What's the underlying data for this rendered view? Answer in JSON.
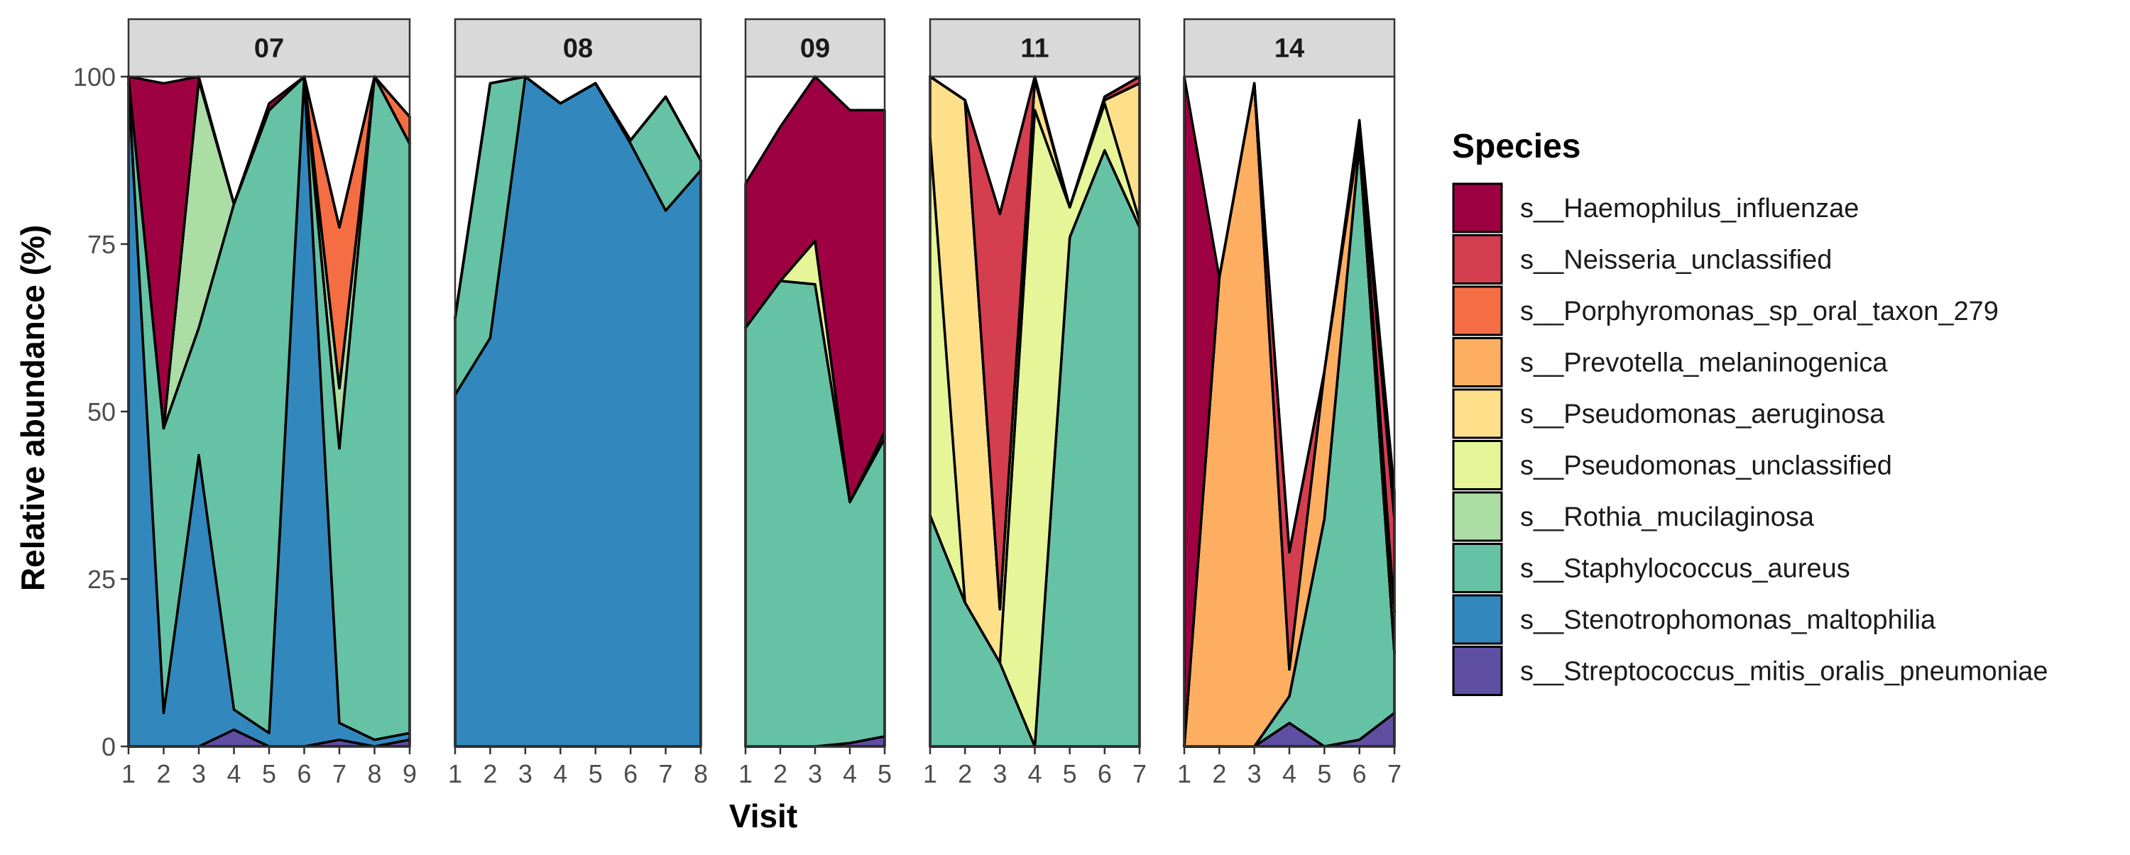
{
  "chart_data": {
    "type": "area",
    "subtype": "stacked area, faceted by subject",
    "xlabel": "Visit",
    "ylabel": "Relative abundance (%)",
    "ylim": [
      0,
      100
    ],
    "yticks": [
      0,
      25,
      50,
      75,
      100
    ],
    "grid": false,
    "legend_title": "Species",
    "legend_position": "right",
    "species": [
      {
        "name": "s__Haemophilus_influenzae",
        "color": "#9e0142"
      },
      {
        "name": "s__Neisseria_unclassified",
        "color": "#d53e4f"
      },
      {
        "name": "s__Porphyromonas_sp_oral_taxon_279",
        "color": "#f46d43"
      },
      {
        "name": "s__Prevotella_melaninogenica",
        "color": "#fdae61"
      },
      {
        "name": "s__Pseudomonas_aeruginosa",
        "color": "#fee08b"
      },
      {
        "name": "s__Pseudomonas_unclassified",
        "color": "#e6f598"
      },
      {
        "name": "s__Rothia_mucilaginosa",
        "color": "#abdda4"
      },
      {
        "name": "s__Staphylococcus_aureus",
        "color": "#66c2a5"
      },
      {
        "name": "s__Stenotrophomonas_maltophilia",
        "color": "#3288bd"
      },
      {
        "name": "s__Streptococcus_mitis_oralis_pneumoniae",
        "color": "#5e4fa2"
      }
    ],
    "panels": [
      {
        "subject": "07",
        "visits": [
          1,
          2,
          3,
          4,
          5,
          6,
          7,
          8,
          9
        ],
        "series": {
          "s__Streptococcus_mitis_oralis_pneumoniae": [
            0,
            0,
            0,
            2.5,
            0,
            0,
            1,
            0,
            1
          ],
          "s__Stenotrophomonas_maltophilia": [
            99,
            5,
            43.5,
            3,
            2,
            100,
            2.5,
            1,
            1
          ],
          "s__Staphylococcus_aureus": [
            1,
            42.5,
            19,
            75.5,
            93,
            0,
            41,
            99,
            88
          ],
          "s__Rothia_mucilaginosa": [
            0,
            0,
            37,
            0,
            0,
            0,
            9,
            0,
            0
          ],
          "s__Pseudomonas_unclassified": [
            0,
            0,
            0,
            0,
            0,
            0,
            0,
            0,
            0
          ],
          "s__Pseudomonas_aeruginosa": [
            0,
            0,
            0,
            0,
            0,
            0,
            0,
            0,
            0
          ],
          "s__Prevotella_melaninogenica": [
            0,
            0,
            0,
            0,
            0,
            0,
            0,
            0,
            0
          ],
          "s__Porphyromonas_sp_oral_taxon_279": [
            0,
            0,
            0,
            0,
            0,
            0,
            24,
            0,
            4
          ],
          "s__Neisseria_unclassified": [
            0,
            0,
            0,
            0,
            0,
            0,
            0,
            0,
            0
          ],
          "s__Haemophilus_influenzae": [
            0,
            51.5,
            0.5,
            0,
            1,
            0,
            0,
            0,
            0
          ]
        }
      },
      {
        "subject": "08",
        "visits": [
          1,
          2,
          3,
          4,
          5,
          6,
          7,
          8
        ],
        "series": {
          "s__Streptococcus_mitis_oralis_pneumoniae": [
            0,
            0,
            0,
            0,
            0,
            0,
            0,
            0
          ],
          "s__Stenotrophomonas_maltophilia": [
            52.5,
            61,
            100,
            96,
            99,
            90,
            80,
            86
          ],
          "s__Staphylococcus_aureus": [
            11.5,
            38,
            0,
            0,
            0,
            0.5,
            17,
            1.5
          ],
          "s__Rothia_mucilaginosa": [
            0,
            0,
            0,
            0,
            0,
            0,
            0,
            0
          ],
          "s__Pseudomonas_unclassified": [
            0,
            0,
            0,
            0,
            0,
            0,
            0,
            0
          ],
          "s__Pseudomonas_aeruginosa": [
            0,
            0,
            0,
            0,
            0,
            0,
            0,
            0
          ],
          "s__Prevotella_melaninogenica": [
            0,
            0,
            0,
            0,
            0,
            0,
            0,
            0
          ],
          "s__Porphyromonas_sp_oral_taxon_279": [
            0,
            0,
            0,
            0,
            0,
            0,
            0,
            0
          ],
          "s__Neisseria_unclassified": [
            0,
            0,
            0,
            0,
            0,
            0,
            0,
            0
          ],
          "s__Haemophilus_influenzae": [
            0,
            0,
            0,
            0,
            0,
            0,
            0,
            0
          ]
        }
      },
      {
        "subject": "09",
        "visits": [
          1,
          2,
          3,
          4,
          5
        ],
        "series": {
          "s__Streptococcus_mitis_oralis_pneumoniae": [
            0,
            0,
            0,
            0.5,
            1.5
          ],
          "s__Stenotrophomonas_maltophilia": [
            0,
            0,
            0,
            0,
            0
          ],
          "s__Staphylococcus_aureus": [
            62.5,
            69.5,
            69,
            36,
            44.5
          ],
          "s__Rothia_mucilaginosa": [
            0,
            0,
            0,
            0,
            0
          ],
          "s__Pseudomonas_unclassified": [
            0,
            0,
            6.5,
            0,
            0
          ],
          "s__Pseudomonas_aeruginosa": [
            0,
            0,
            0,
            0,
            0
          ],
          "s__Prevotella_melaninogenica": [
            0,
            0,
            0,
            0,
            0
          ],
          "s__Porphyromonas_sp_oral_taxon_279": [
            0,
            0,
            0,
            0,
            0
          ],
          "s__Neisseria_unclassified": [
            0,
            0,
            0,
            0,
            1
          ],
          "s__Haemophilus_influenzae": [
            21.5,
            23,
            24.5,
            58.5,
            48
          ]
        }
      },
      {
        "subject": "11",
        "visits": [
          1,
          2,
          3,
          4,
          5,
          6,
          7
        ],
        "series": {
          "s__Streptococcus_mitis_oralis_pneumoniae": [
            0,
            0,
            0,
            0,
            0,
            0,
            0
          ],
          "s__Stenotrophomonas_maltophilia": [
            0,
            0,
            0,
            0,
            0,
            0,
            0
          ],
          "s__Staphylococcus_aureus": [
            34.5,
            21.5,
            12.5,
            0,
            76,
            89,
            77.5
          ],
          "s__Rothia_mucilaginosa": [
            0,
            0,
            0,
            0,
            0,
            0,
            0
          ],
          "s__Pseudomonas_unclassified": [
            56.5,
            0,
            0,
            95,
            4.5,
            7,
            1
          ],
          "s__Pseudomonas_aeruginosa": [
            9,
            75,
            8,
            4.5,
            0,
            0.5,
            20.5
          ],
          "s__Prevotella_melaninogenica": [
            0,
            0,
            0,
            0,
            0,
            0,
            0
          ],
          "s__Porphyromonas_sp_oral_taxon_279": [
            0,
            0,
            0,
            0,
            0,
            0,
            0
          ],
          "s__Neisseria_unclassified": [
            0,
            0,
            59,
            0.5,
            0,
            0.5,
            1
          ],
          "s__Haemophilus_influenzae": [
            0,
            0,
            0,
            0,
            0,
            0,
            0
          ]
        }
      },
      {
        "subject": "14",
        "visits": [
          1,
          2,
          3,
          4,
          5,
          6,
          7
        ],
        "series": {
          "s__Streptococcus_mitis_oralis_pneumoniae": [
            0,
            0,
            0,
            3.5,
            0,
            1,
            5
          ],
          "s__Stenotrophomonas_maltophilia": [
            0,
            0,
            0,
            0,
            0,
            0,
            0
          ],
          "s__Staphylococcus_aureus": [
            0,
            0,
            0,
            4,
            34,
            89,
            9
          ],
          "s__Rothia_mucilaginosa": [
            0,
            0,
            0,
            0,
            0,
            0,
            0
          ],
          "s__Pseudomonas_unclassified": [
            0,
            0,
            0,
            0,
            0,
            0,
            0
          ],
          "s__Pseudomonas_aeruginosa": [
            0,
            0,
            0,
            0,
            0,
            0,
            0
          ],
          "s__Prevotella_melaninogenica": [
            0,
            70,
            99,
            4,
            22,
            1.5,
            6
          ],
          "s__Porphyromonas_sp_oral_taxon_279": [
            0,
            0,
            0,
            0,
            0,
            0,
            0
          ],
          "s__Neisseria_unclassified": [
            0,
            0,
            0,
            17.5,
            0,
            1,
            14
          ],
          "s__Haemophilus_influenzae": [
            100,
            0,
            0,
            0,
            0,
            1,
            4
          ]
        }
      }
    ]
  }
}
